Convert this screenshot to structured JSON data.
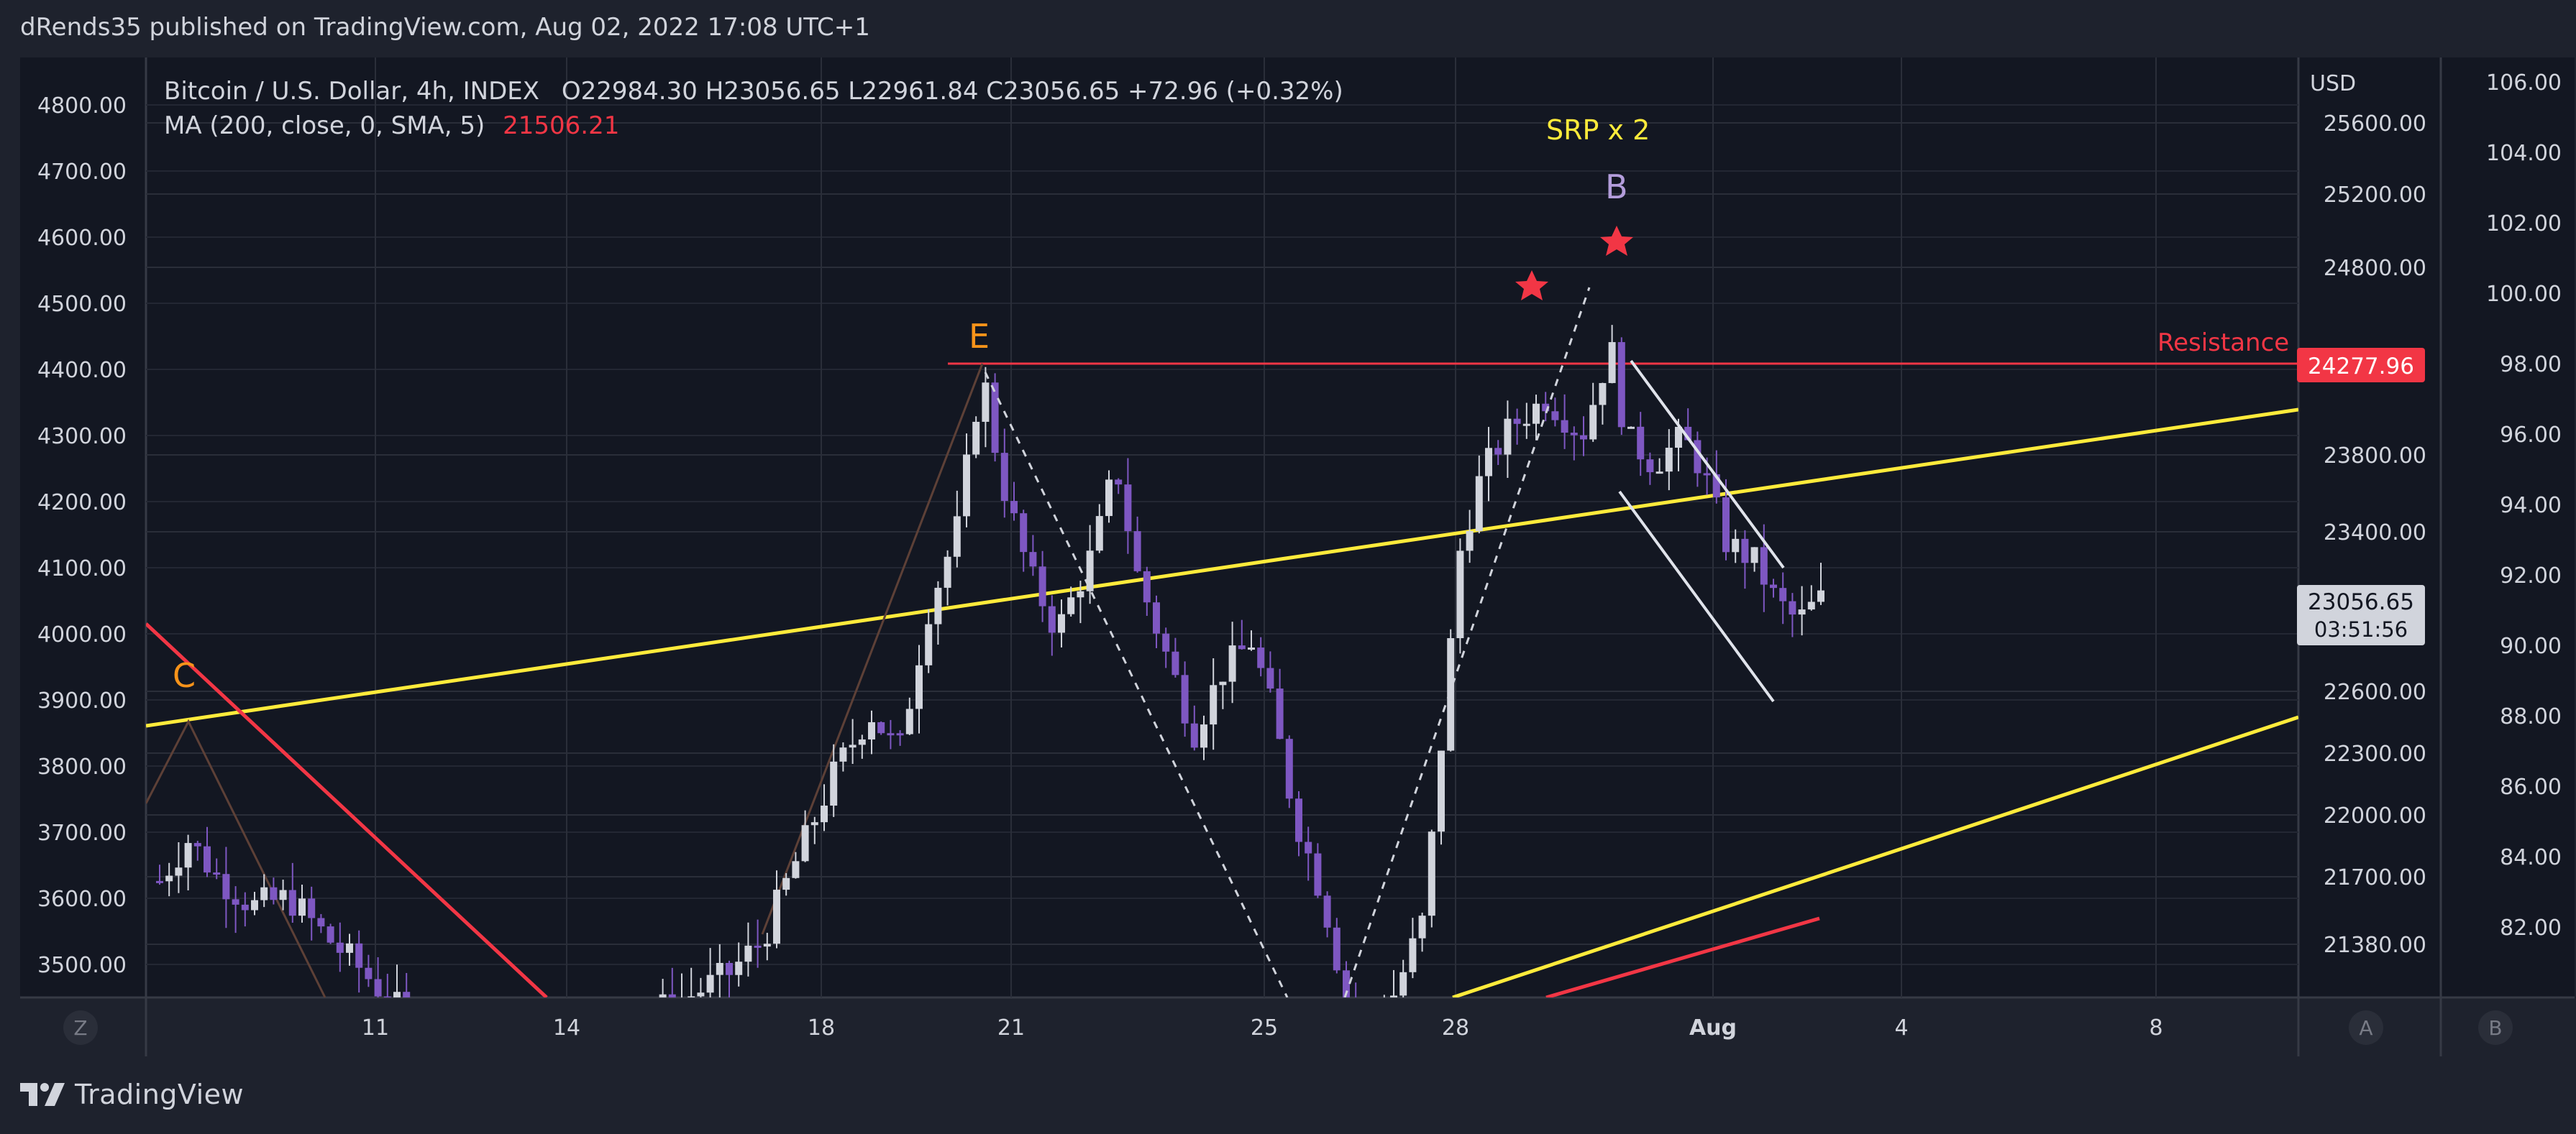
{
  "header": {
    "published": "dRends35 published on TradingView.com, Aug 02, 2022 17:08 UTC+1"
  },
  "legend": {
    "symbol": "Bitcoin / U.S. Dollar, 4h, INDEX",
    "ohlc": "O22984.30  H23056.65  L22961.84  C23056.65  +72.96 (+0.32%)",
    "ma_label": "MA (200, close, 0, SMA, 5)",
    "ma_value": "21506.21",
    "ma_color": "#f23645"
  },
  "annotations": {
    "wave_c": "C",
    "wave_e": "E",
    "wave_b": "B",
    "srp": "SRP x 2",
    "resistance": "Resistance",
    "wave_color": "#f7931a",
    "b_color": "#b39ddb",
    "srp_color": "#ffeb3b",
    "resistance_color": "#f23645"
  },
  "axes": {
    "currency": "USD",
    "left_ticks": [
      "4800.00",
      "4700.00",
      "4600.00",
      "4500.00",
      "4400.00",
      "4300.00",
      "4200.00",
      "4100.00",
      "4000.00",
      "3900.00",
      "3800.00",
      "3700.00",
      "3600.00",
      "3500.00"
    ],
    "main_ticks": [
      "25600.00",
      "25200.00",
      "24800.00",
      "23800.00",
      "23400.00",
      "22600.00",
      "22300.00",
      "22000.00",
      "21700.00",
      "21380.00"
    ],
    "right_ticks": [
      "106.00",
      "104.00",
      "102.00",
      "100.00",
      "98.00",
      "96.00",
      "94.00",
      "92.00",
      "90.00",
      "88.00",
      "86.00",
      "84.00",
      "82.00"
    ],
    "x_ticks": [
      "11",
      "14",
      "18",
      "21",
      "25",
      "28",
      "Aug",
      "4",
      "8"
    ],
    "resistance_price": "24277.96",
    "last_price": "23056.65",
    "countdown": "03:51:56"
  },
  "scale_buttons": {
    "left": "Z",
    "mid": "A",
    "right": "B"
  },
  "footer": {
    "brand": "TradingView"
  },
  "chart_data": {
    "type": "candlestick",
    "symbol": "Bitcoin / U.S. Dollar",
    "interval": "4h",
    "up_color": "#d1d4dc",
    "down_color": "#7e57c2",
    "ma_color": "#f23645",
    "trend_color": "#ffeb3b",
    "resistance_level": 24277.96,
    "last_close": 23056.65,
    "ylim": [
      21100,
      25850
    ]
  }
}
